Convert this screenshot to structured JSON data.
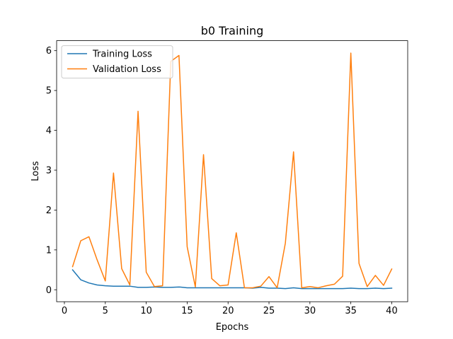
{
  "chart_data": {
    "type": "line",
    "title": "b0 Training",
    "xlabel": "Epochs",
    "ylabel": "Loss",
    "xlim": [
      -0.95,
      41.95
    ],
    "ylim": [
      -0.3,
      6.25
    ],
    "xticks": [
      0,
      5,
      10,
      15,
      20,
      25,
      30,
      35,
      40
    ],
    "yticks": [
      0,
      1,
      2,
      3,
      4,
      5,
      6
    ],
    "legend": "top-left",
    "grid": false,
    "x": [
      1,
      2,
      3,
      4,
      5,
      6,
      7,
      8,
      9,
      10,
      11,
      12,
      13,
      14,
      15,
      16,
      17,
      18,
      19,
      20,
      21,
      22,
      23,
      24,
      25,
      26,
      27,
      28,
      29,
      30,
      31,
      32,
      33,
      34,
      35,
      36,
      37,
      38,
      39,
      40
    ],
    "series": [
      {
        "name": "Training Loss",
        "color": "#1f77b4",
        "values": [
          0.5,
          0.25,
          0.17,
          0.12,
          0.1,
          0.09,
          0.09,
          0.09,
          0.06,
          0.06,
          0.07,
          0.06,
          0.06,
          0.07,
          0.05,
          0.05,
          0.05,
          0.05,
          0.05,
          0.05,
          0.05,
          0.05,
          0.04,
          0.06,
          0.04,
          0.04,
          0.03,
          0.05,
          0.03,
          0.03,
          0.03,
          0.03,
          0.03,
          0.03,
          0.04,
          0.03,
          0.03,
          0.04,
          0.03,
          0.04
        ]
      },
      {
        "name": "Validation Loss",
        "color": "#ff7f0e",
        "values": [
          0.58,
          1.23,
          1.33,
          0.75,
          0.22,
          2.93,
          0.53,
          0.12,
          4.48,
          0.44,
          0.08,
          0.1,
          5.73,
          5.88,
          1.08,
          0.07,
          3.39,
          0.28,
          0.1,
          0.12,
          1.43,
          0.05,
          0.05,
          0.09,
          0.33,
          0.05,
          1.17,
          3.46,
          0.05,
          0.08,
          0.05,
          0.1,
          0.14,
          0.34,
          5.94,
          0.66,
          0.08,
          0.36,
          0.11,
          0.52
        ]
      }
    ]
  }
}
